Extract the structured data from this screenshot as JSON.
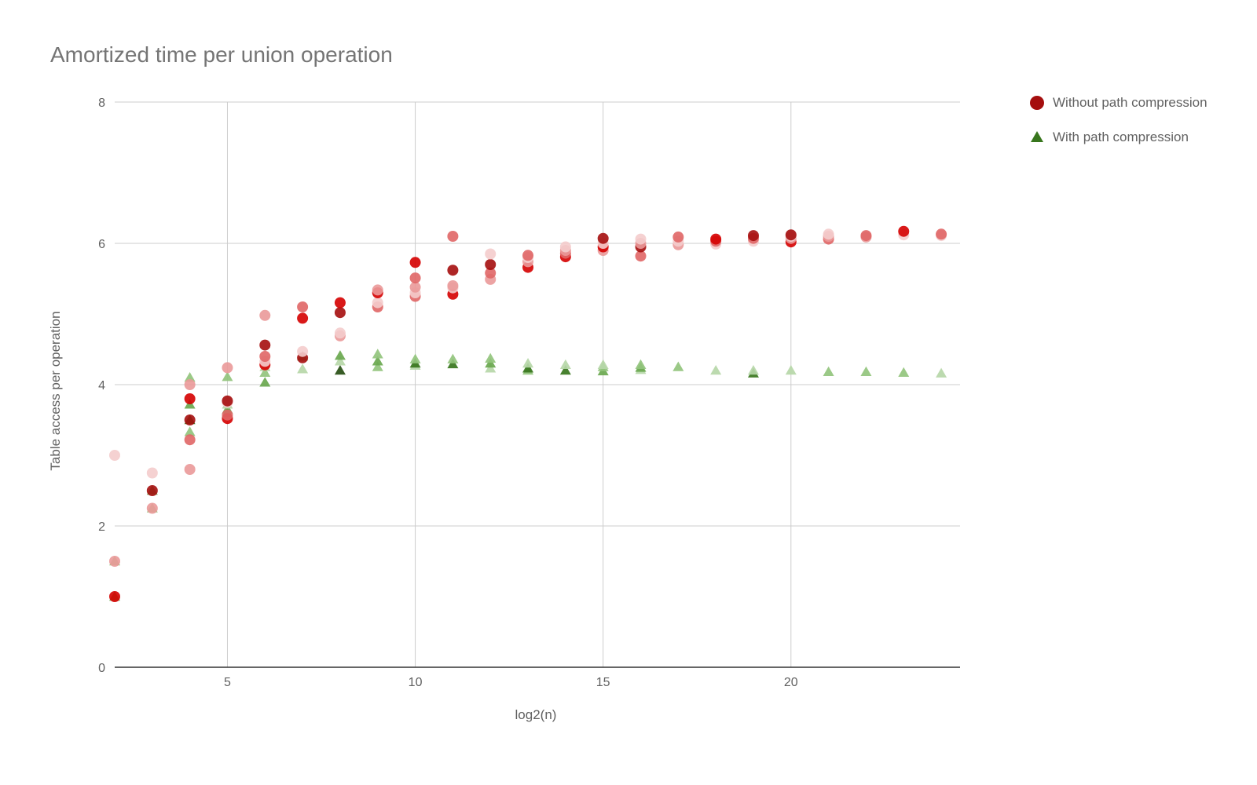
{
  "chart_data": {
    "type": "scatter",
    "title": "Amortized time per union operation",
    "xlabel": "log2(n)",
    "ylabel": "Table access per operation",
    "xlim": [
      2,
      24.5
    ],
    "ylim": [
      0,
      8
    ],
    "x_ticks": [
      5,
      10,
      15,
      20
    ],
    "y_ticks": [
      0,
      2,
      4,
      6,
      8
    ],
    "grid": true,
    "legend_position": "right",
    "series": [
      {
        "name": "Without path compression",
        "marker": "circle",
        "color": "#a50e0e",
        "shades": [
          "#a50e0e",
          "#d50000",
          "#e06666",
          "#ea9999",
          "#f4cccc"
        ],
        "points": [
          [
            2,
            1.0,
            1
          ],
          [
            2,
            1.5,
            3
          ],
          [
            2,
            3.0,
            4
          ],
          [
            3,
            2.25,
            3
          ],
          [
            3,
            2.5,
            0
          ],
          [
            3,
            2.75,
            4
          ],
          [
            4,
            2.8,
            3
          ],
          [
            4,
            3.22,
            2
          ],
          [
            4,
            3.5,
            0
          ],
          [
            4,
            3.8,
            1
          ],
          [
            4,
            4.0,
            3
          ],
          [
            5,
            3.52,
            1
          ],
          [
            5,
            3.57,
            2
          ],
          [
            5,
            3.75,
            4
          ],
          [
            5,
            3.77,
            0
          ],
          [
            5,
            4.24,
            3
          ],
          [
            6,
            4.28,
            1
          ],
          [
            6,
            4.33,
            4
          ],
          [
            6,
            4.4,
            2
          ],
          [
            6,
            4.56,
            0
          ],
          [
            6,
            4.98,
            3
          ],
          [
            7,
            4.38,
            0
          ],
          [
            7,
            4.47,
            4
          ],
          [
            7,
            4.94,
            1
          ],
          [
            7,
            5.1,
            2
          ],
          [
            8,
            4.69,
            3
          ],
          [
            8,
            4.73,
            4
          ],
          [
            8,
            5.02,
            0
          ],
          [
            8,
            5.16,
            1
          ],
          [
            9,
            5.1,
            2
          ],
          [
            9,
            5.16,
            4
          ],
          [
            9,
            5.3,
            1
          ],
          [
            9,
            5.34,
            3
          ],
          [
            10,
            5.25,
            2
          ],
          [
            10,
            5.3,
            4
          ],
          [
            10,
            5.38,
            3
          ],
          [
            10,
            5.51,
            2
          ],
          [
            10,
            5.73,
            1
          ],
          [
            11,
            5.28,
            1
          ],
          [
            11,
            5.37,
            4
          ],
          [
            11,
            5.4,
            3
          ],
          [
            11,
            5.62,
            0
          ],
          [
            11,
            6.1,
            2
          ],
          [
            12,
            5.49,
            3
          ],
          [
            12,
            5.58,
            2
          ],
          [
            12,
            5.7,
            0
          ],
          [
            12,
            5.85,
            4
          ],
          [
            13,
            5.66,
            1
          ],
          [
            13,
            5.74,
            3
          ],
          [
            13,
            5.8,
            4
          ],
          [
            13,
            5.83,
            2
          ],
          [
            14,
            5.81,
            1
          ],
          [
            14,
            5.86,
            2
          ],
          [
            14,
            5.9,
            3
          ],
          [
            14,
            5.95,
            4
          ],
          [
            15,
            5.9,
            3
          ],
          [
            15,
            5.95,
            1
          ],
          [
            15,
            6.0,
            4
          ],
          [
            15,
            6.07,
            0
          ],
          [
            16,
            5.82,
            2
          ],
          [
            16,
            5.95,
            0
          ],
          [
            16,
            6.0,
            3
          ],
          [
            16,
            6.06,
            4
          ],
          [
            17,
            5.98,
            3
          ],
          [
            17,
            6.03,
            4
          ],
          [
            17,
            6.09,
            2
          ],
          [
            18,
            5.99,
            4
          ],
          [
            18,
            6.03,
            2
          ],
          [
            18,
            6.06,
            1
          ],
          [
            19,
            6.03,
            4
          ],
          [
            19,
            6.07,
            2
          ],
          [
            19,
            6.11,
            0
          ],
          [
            20,
            6.02,
            1
          ],
          [
            20,
            6.07,
            3
          ],
          [
            20,
            6.1,
            4
          ],
          [
            20,
            6.12,
            0
          ],
          [
            21,
            6.06,
            2
          ],
          [
            21,
            6.1,
            3
          ],
          [
            21,
            6.13,
            4
          ],
          [
            22,
            6.09,
            3
          ],
          [
            22,
            6.11,
            2
          ],
          [
            23,
            6.12,
            4
          ],
          [
            23,
            6.17,
            1
          ],
          [
            24,
            6.11,
            4
          ],
          [
            24,
            6.13,
            2
          ]
        ]
      },
      {
        "name": "With path compression",
        "marker": "triangle",
        "color": "#38761d",
        "shades": [
          "#274e13",
          "#38761d",
          "#6aa84f",
          "#93c47d",
          "#b6d7a8"
        ],
        "points": [
          [
            2,
            1.0,
            2
          ],
          [
            2,
            1.5,
            3
          ],
          [
            3,
            2.25,
            3
          ],
          [
            3,
            2.5,
            2
          ],
          [
            4,
            3.33,
            3
          ],
          [
            4,
            3.5,
            1
          ],
          [
            4,
            3.72,
            2
          ],
          [
            4,
            4.1,
            3
          ],
          [
            5,
            3.6,
            0
          ],
          [
            5,
            3.65,
            2
          ],
          [
            5,
            3.72,
            4
          ],
          [
            5,
            4.11,
            3
          ],
          [
            6,
            4.03,
            2
          ],
          [
            6,
            4.17,
            3
          ],
          [
            6,
            4.25,
            4
          ],
          [
            7,
            4.22,
            4
          ],
          [
            7,
            4.4,
            2
          ],
          [
            8,
            4.2,
            0
          ],
          [
            8,
            4.33,
            4
          ],
          [
            8,
            4.41,
            2
          ],
          [
            9,
            4.25,
            3
          ],
          [
            9,
            4.33,
            2
          ],
          [
            9,
            4.43,
            3
          ],
          [
            10,
            4.27,
            4
          ],
          [
            10,
            4.3,
            1
          ],
          [
            10,
            4.36,
            3
          ],
          [
            11,
            4.29,
            1
          ],
          [
            11,
            4.36,
            3
          ],
          [
            12,
            4.23,
            4
          ],
          [
            12,
            4.3,
            2
          ],
          [
            12,
            4.37,
            3
          ],
          [
            13,
            4.2,
            3
          ],
          [
            13,
            4.23,
            1
          ],
          [
            13,
            4.3,
            4
          ],
          [
            14,
            4.2,
            1
          ],
          [
            14,
            4.28,
            4
          ],
          [
            15,
            4.19,
            2
          ],
          [
            15,
            4.25,
            3
          ],
          [
            15,
            4.28,
            4
          ],
          [
            16,
            4.21,
            4
          ],
          [
            16,
            4.24,
            2
          ],
          [
            16,
            4.28,
            3
          ],
          [
            17,
            4.25,
            3
          ],
          [
            18,
            4.2,
            4
          ],
          [
            19,
            4.16,
            1
          ],
          [
            19,
            4.2,
            4
          ],
          [
            20,
            4.2,
            4
          ],
          [
            21,
            4.18,
            3
          ],
          [
            22,
            4.18,
            3
          ],
          [
            23,
            4.17,
            3
          ],
          [
            24,
            4.16,
            4
          ]
        ]
      }
    ]
  }
}
